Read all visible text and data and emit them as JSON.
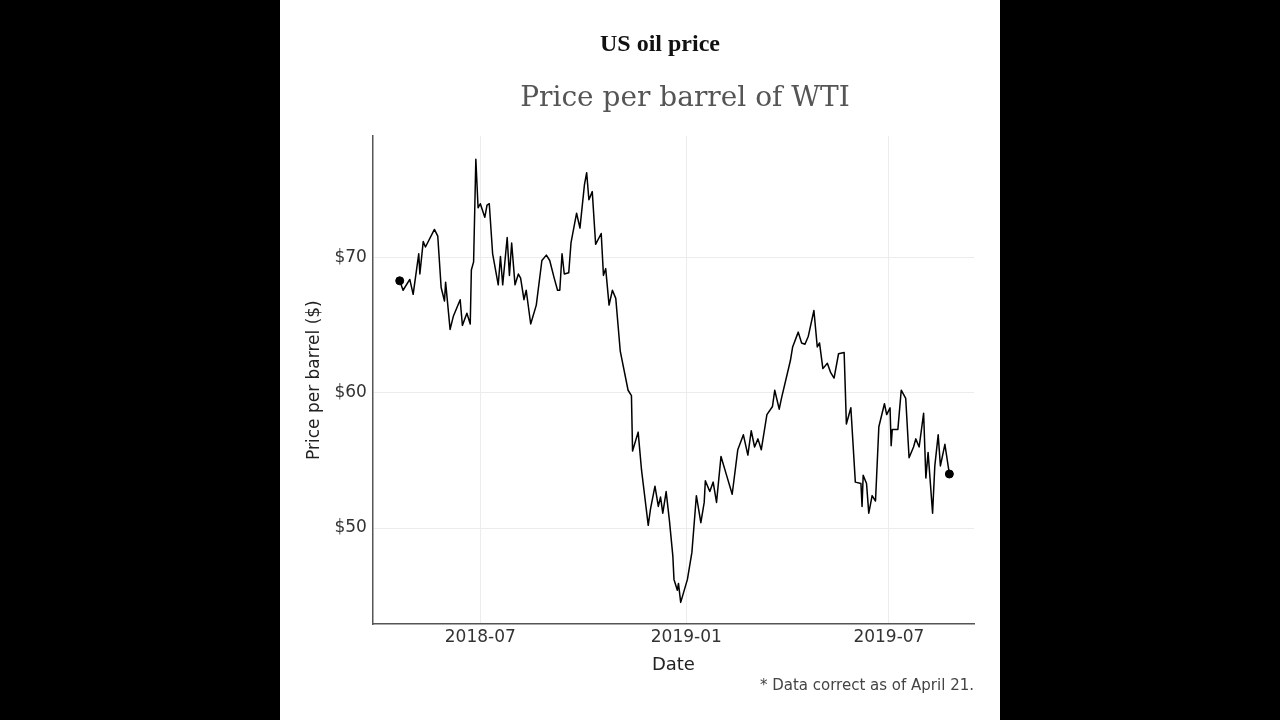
{
  "chart_data": {
    "type": "line",
    "title": "US oil price",
    "subtitle": "Price per barrel of WTI",
    "xlabel": "Date",
    "ylabel": "Price per barrel ($)",
    "annotations": [
      "* Data correct as of April 21."
    ],
    "xlim": [
      "2018-03-27",
      "2019-09-15"
    ],
    "xticks": [
      "2018-07",
      "2019-01",
      "2019-07"
    ],
    "ylim": [
      42.9,
      79
    ],
    "yticks": [
      {
        "value": 50,
        "label": "$50"
      },
      {
        "value": 60,
        "label": "$60"
      },
      {
        "value": 70,
        "label": "$70"
      }
    ],
    "grid": true,
    "legend": false,
    "series": [
      {
        "color": "#000000",
        "marker": "none",
        "line_style": "solid",
        "x": [
          "2018-04-20",
          "2018-04-23",
          "2018-04-29",
          "2018-05-02",
          "2018-05-07",
          "2018-05-08",
          "2018-05-11",
          "2018-05-13",
          "2018-05-21",
          "2018-05-24",
          "2018-05-27",
          "2018-05-30",
          "2018-05-31",
          "2018-06-04",
          "2018-06-07",
          "2018-06-13",
          "2018-06-15",
          "2018-06-19",
          "2018-06-22",
          "2018-06-23",
          "2018-06-25",
          "2018-06-27",
          "2018-06-29",
          "2018-07-01",
          "2018-07-05",
          "2018-07-07",
          "2018-07-09",
          "2018-07-12",
          "2018-07-17",
          "2018-07-19",
          "2018-07-21",
          "2018-07-25",
          "2018-07-27",
          "2018-07-29",
          "2018-08-01",
          "2018-08-04",
          "2018-08-06",
          "2018-08-09",
          "2018-08-11",
          "2018-08-15",
          "2018-08-20",
          "2018-08-25",
          "2018-08-29",
          "2018-09-01",
          "2018-09-05",
          "2018-09-08",
          "2018-09-10",
          "2018-09-12",
          "2018-09-14",
          "2018-09-18",
          "2018-09-20",
          "2018-09-25",
          "2018-09-28",
          "2018-10-02",
          "2018-10-04",
          "2018-10-06",
          "2018-10-09",
          "2018-10-12",
          "2018-10-17",
          "2018-10-19",
          "2018-10-21",
          "2018-10-24",
          "2018-10-27",
          "2018-10-30",
          "2018-11-03",
          "2018-11-10",
          "2018-11-13",
          "2018-11-14",
          "2018-11-19",
          "2018-11-22",
          "2018-11-28",
          "2018-11-30",
          "2018-12-04",
          "2018-12-07",
          "2018-12-09",
          "2018-12-11",
          "2018-12-14",
          "2018-12-17",
          "2018-12-20",
          "2018-12-21",
          "2018-12-24",
          "2018-12-25",
          "2018-12-27",
          "2019-01-02",
          "2019-01-06",
          "2019-01-10",
          "2019-01-14",
          "2019-01-17",
          "2019-01-18",
          "2019-01-22",
          "2019-01-25",
          "2019-01-28",
          "2019-02-01",
          "2019-02-06",
          "2019-02-11",
          "2019-02-16",
          "2019-02-21",
          "2019-02-25",
          "2019-02-28",
          "2019-03-03",
          "2019-03-06",
          "2019-03-09",
          "2019-03-14",
          "2019-03-19",
          "2019-03-21",
          "2019-03-25",
          "2019-03-27",
          "2019-04-04",
          "2019-04-06",
          "2019-04-11",
          "2019-04-14",
          "2019-04-17",
          "2019-04-20",
          "2019-04-25",
          "2019-04-28",
          "2019-04-30",
          "2019-05-03",
          "2019-05-07",
          "2019-05-10",
          "2019-05-13",
          "2019-05-17",
          "2019-05-22",
          "2019-05-24",
          "2019-05-28",
          "2019-06-01",
          "2019-06-06",
          "2019-06-07",
          "2019-06-08",
          "2019-06-11",
          "2019-06-13",
          "2019-06-16",
          "2019-06-19",
          "2019-06-20",
          "2019-06-22",
          "2019-06-27",
          "2019-06-29",
          "2019-07-02",
          "2019-07-03",
          "2019-07-04",
          "2019-07-09",
          "2019-07-12",
          "2019-07-16",
          "2019-07-19",
          "2019-07-23",
          "2019-07-25",
          "2019-07-28",
          "2019-08-01",
          "2019-08-03",
          "2019-08-05",
          "2019-08-09",
          "2019-08-11",
          "2019-08-14",
          "2019-08-16",
          "2019-08-20",
          "2019-08-24"
        ],
        "values": [
          68.3,
          67.6,
          68.4,
          67.3,
          70.3,
          68.8,
          71.2,
          70.8,
          72.1,
          71.6,
          67.8,
          66.8,
          68.2,
          64.7,
          65.7,
          66.9,
          65.0,
          65.9,
          65.1,
          69.1,
          69.7,
          77.3,
          73.7,
          74.0,
          73.0,
          73.9,
          74.0,
          70.3,
          68.0,
          70.1,
          68.0,
          71.5,
          68.7,
          71.1,
          68.0,
          68.8,
          68.5,
          66.9,
          67.6,
          65.1,
          66.5,
          69.8,
          70.2,
          69.8,
          68.5,
          67.6,
          67.6,
          70.3,
          68.8,
          68.9,
          71.1,
          73.3,
          72.2,
          75.4,
          76.3,
          74.3,
          74.9,
          71.0,
          71.8,
          68.7,
          69.2,
          66.5,
          67.6,
          67.0,
          63.1,
          60.2,
          59.8,
          55.7,
          57.1,
          54.3,
          50.2,
          51.4,
          53.1,
          51.6,
          52.3,
          51.1,
          52.7,
          50.5,
          47.9,
          46.2,
          45.4,
          45.9,
          44.5,
          46.2,
          48.2,
          52.4,
          50.4,
          51.9,
          53.5,
          52.7,
          53.4,
          51.9,
          55.3,
          53.9,
          52.5,
          55.8,
          56.9,
          55.4,
          57.2,
          56.0,
          56.6,
          55.8,
          58.4,
          59.0,
          60.2,
          58.8,
          59.6,
          62.4,
          63.4,
          64.5,
          63.7,
          63.6,
          64.2,
          66.1,
          63.4,
          63.7,
          61.8,
          62.2,
          61.5,
          61.1,
          62.9,
          63.0,
          57.7,
          58.9,
          53.4,
          53.3,
          51.6,
          53.9,
          53.3,
          51.1,
          52.4,
          52.0,
          53.8,
          57.5,
          59.2,
          58.4,
          58.9,
          56.1,
          57.3,
          57.3,
          60.2,
          59.6,
          55.2,
          56.0,
          56.6,
          56.0,
          58.5,
          53.7,
          55.6,
          51.1,
          54.6,
          56.9,
          54.6,
          56.2,
          54.0
        ]
      },
      {
        "type": "scatter",
        "color": "#000000",
        "marker": "circle",
        "x": [
          "2018-04-20",
          "2019-08-24"
        ],
        "values": [
          68.3,
          54.0
        ]
      }
    ]
  }
}
